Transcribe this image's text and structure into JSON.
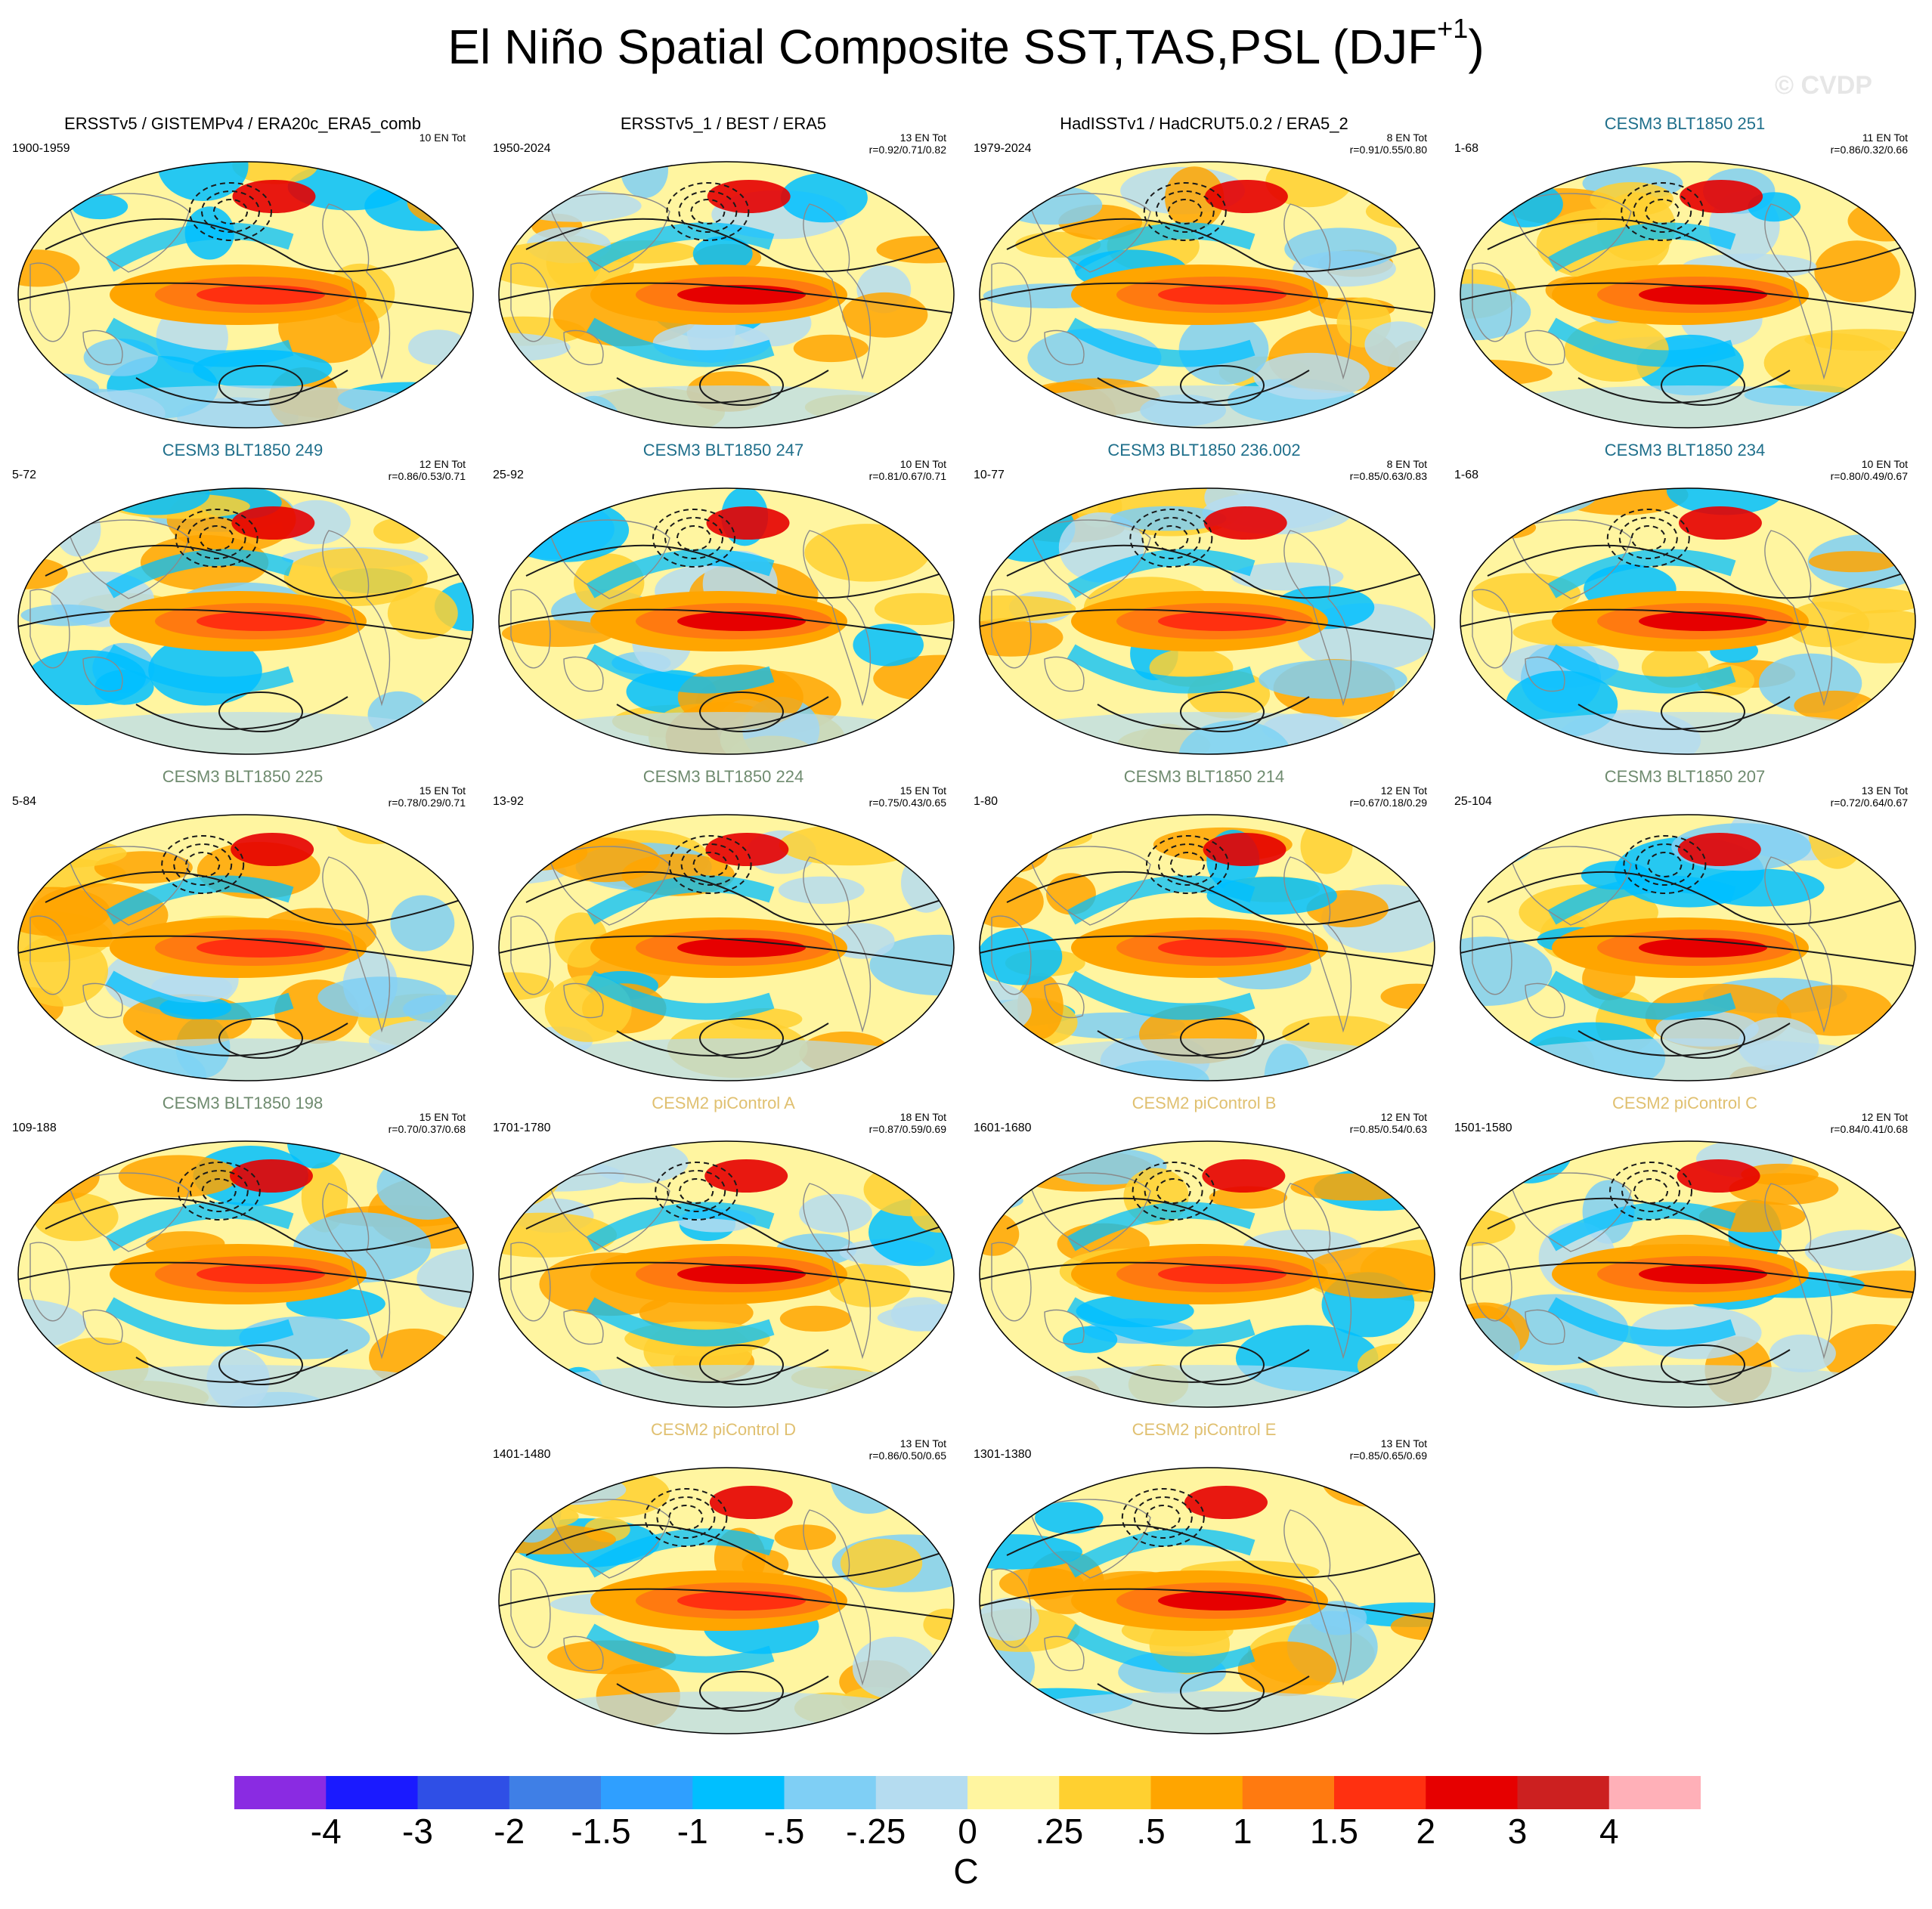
{
  "figure": {
    "title": "El Niño Spatial Composite SST,TAS,PSL (DJF",
    "title_superscript": "+1",
    "title_close": ")",
    "watermark": "© CVDP"
  },
  "colors": {
    "obs_title": "#000000",
    "cesm3_blue": "#1f6f8b",
    "cesm3_green": "#6f8b6f",
    "cesm2_tan": "#e0c070",
    "ocean_base": "#fff5a0",
    "contour": "#1a1a1a"
  },
  "panels": [
    {
      "title": "ERSSTv5 / GISTEMPv4 / ERA20c_ERA5_comb",
      "title_color": "obs_title",
      "years": "1900-1959",
      "count": "10 EN Tot",
      "stats": "",
      "pattern": 0
    },
    {
      "title": "ERSSTv5_1 / BEST / ERA5",
      "title_color": "obs_title",
      "years": "1950-2024",
      "count": "13 EN Tot",
      "stats": "r=0.92/0.71/0.82",
      "pattern": 1
    },
    {
      "title": "HadISSTv1 / HadCRUT5.0.2 / ERA5_2",
      "title_color": "obs_title",
      "years": "1979-2024",
      "count": "8 EN Tot",
      "stats": "r=0.91/0.55/0.80",
      "pattern": 2
    },
    {
      "title": "CESM3 BLT1850 251",
      "title_color": "cesm3_blue",
      "years": "1-68",
      "count": "11 EN Tot",
      "stats": "r=0.86/0.32/0.66",
      "pattern": 3
    },
    {
      "title": "CESM3 BLT1850 249",
      "title_color": "cesm3_blue",
      "years": "5-72",
      "count": "12 EN Tot",
      "stats": "r=0.86/0.53/0.71",
      "pattern": 4
    },
    {
      "title": "CESM3 BLT1850 247",
      "title_color": "cesm3_blue",
      "years": "25-92",
      "count": "10 EN Tot",
      "stats": "r=0.81/0.67/0.71",
      "pattern": 5
    },
    {
      "title": "CESM3 BLT1850 236.002",
      "title_color": "cesm3_blue",
      "years": "10-77",
      "count": "8 EN Tot",
      "stats": "r=0.85/0.63/0.83",
      "pattern": 6
    },
    {
      "title": "CESM3 BLT1850 234",
      "title_color": "cesm3_blue",
      "years": "1-68",
      "count": "10 EN Tot",
      "stats": "r=0.80/0.49/0.67",
      "pattern": 7
    },
    {
      "title": "CESM3 BLT1850 225",
      "title_color": "cesm3_green",
      "years": "5-84",
      "count": "15 EN Tot",
      "stats": "r=0.78/0.29/0.71",
      "pattern": 8
    },
    {
      "title": "CESM3 BLT1850 224",
      "title_color": "cesm3_green",
      "years": "13-92",
      "count": "15 EN Tot",
      "stats": "r=0.75/0.43/0.65",
      "pattern": 9
    },
    {
      "title": "CESM3 BLT1850 214",
      "title_color": "cesm3_green",
      "years": "1-80",
      "count": "12 EN Tot",
      "stats": "r=0.67/0.18/0.29",
      "pattern": 10
    },
    {
      "title": "CESM3 BLT1850 207",
      "title_color": "cesm3_green",
      "years": "25-104",
      "count": "13 EN Tot",
      "stats": "r=0.72/0.64/0.67",
      "pattern": 11
    },
    {
      "title": "CESM3 BLT1850 198",
      "title_color": "cesm3_green",
      "years": "109-188",
      "count": "15 EN Tot",
      "stats": "r=0.70/0.37/0.68",
      "pattern": 12
    },
    {
      "title": "CESM2 piControl A",
      "title_color": "cesm2_tan",
      "years": "1701-1780",
      "count": "18 EN Tot",
      "stats": "r=0.87/0.59/0.69",
      "pattern": 13
    },
    {
      "title": "CESM2 piControl B",
      "title_color": "cesm2_tan",
      "years": "1601-1680",
      "count": "12 EN Tot",
      "stats": "r=0.85/0.54/0.63",
      "pattern": 14
    },
    {
      "title": "CESM2 piControl C",
      "title_color": "cesm2_tan",
      "years": "1501-1580",
      "count": "12 EN Tot",
      "stats": "r=0.84/0.41/0.68",
      "pattern": 15
    },
    {
      "title": "CESM2 piControl D",
      "title_color": "cesm2_tan",
      "years": "1401-1480",
      "count": "13 EN Tot",
      "stats": "r=0.86/0.50/0.65",
      "pattern": 16
    },
    {
      "title": "CESM2 piControl E",
      "title_color": "cesm2_tan",
      "years": "1301-1380",
      "count": "13 EN Tot",
      "stats": "r=0.85/0.65/0.69",
      "pattern": 17
    }
  ],
  "colorbar": {
    "unit": "C",
    "colors": [
      "#8a2be2",
      "#1a1aff",
      "#2f4fe6",
      "#3f7fe6",
      "#2f9fff",
      "#00bfff",
      "#7fcff5",
      "#b5dcf0",
      "#fff5a0",
      "#ffd030",
      "#ffa500",
      "#ff7a10",
      "#ff3010",
      "#e60000",
      "#cc2020",
      "#ffb0b8"
    ],
    "labels": [
      "-4",
      "-3",
      "-2",
      "-1.5",
      "-1",
      "-.5",
      "-.25",
      "0",
      ".25",
      ".5",
      "1",
      "1.5",
      "2",
      "3",
      "4"
    ]
  }
}
